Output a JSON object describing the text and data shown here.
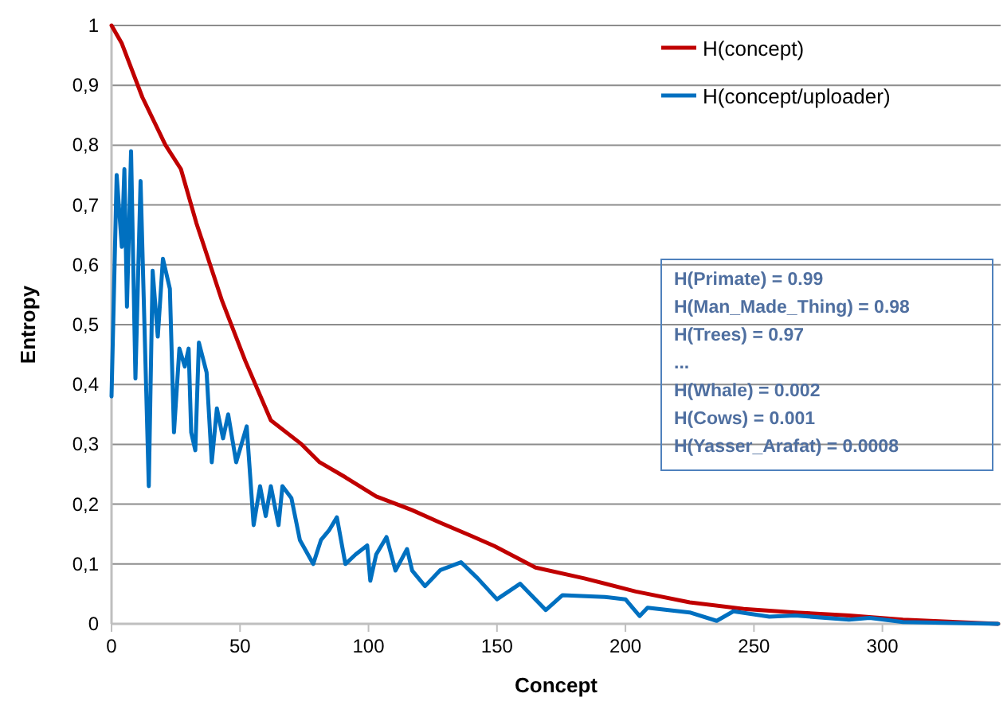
{
  "chart_data": {
    "type": "line",
    "xlabel": "Concept",
    "ylabel": "Entropy",
    "xlim": [
      0,
      346
    ],
    "xticks": [
      0,
      50,
      100,
      150,
      200,
      250,
      300
    ],
    "ylim": [
      0,
      1
    ],
    "yticks": [
      0,
      {
        "value": 0.1,
        "label": "0,1"
      },
      {
        "value": 0.2,
        "label": "0,2"
      },
      {
        "value": 0.3,
        "label": "0,3"
      },
      {
        "value": 0.4,
        "label": "0,4"
      },
      {
        "value": 0.5,
        "label": "0,5"
      },
      {
        "value": 0.6,
        "label": "0,6"
      },
      {
        "value": 0.7,
        "label": "0,7"
      },
      {
        "value": 0.8,
        "label": "0,8"
      },
      {
        "value": 0.9,
        "label": "0,9"
      },
      1
    ],
    "grid": "y",
    "legend": "top right",
    "marker": "none",
    "line_style": "solid",
    "annotations": [
      "H(Primate) = 0.99",
      "H(Man_Made_Thing) = 0.98",
      "H(Trees) = 0.97",
      "...",
      "H(Whale) = 0.002",
      "H(Cows) = 0.001",
      "H(Yasser_Arafat) = 0.0008"
    ],
    "series": [
      {
        "name": "H(concept)",
        "color": "#c00000",
        "x": [
          0,
          4,
          12,
          21,
          27,
          33,
          43,
          52,
          62,
          74,
          81,
          91,
          103,
          117,
          128,
          140,
          149,
          165,
          184,
          204,
          225,
          246,
          266,
          287,
          308,
          345
        ],
        "values": [
          1.0,
          0.97,
          0.88,
          0.8,
          0.76,
          0.67,
          0.54,
          0.44,
          0.34,
          0.3,
          0.27,
          0.245,
          0.213,
          0.19,
          0.169,
          0.147,
          0.13,
          0.094,
          0.076,
          0.054,
          0.036,
          0.025,
          0.019,
          0.014,
          0.007,
          0.0
        ]
      },
      {
        "name": "H(concept/uploader)",
        "color": "#0070c0",
        "x": [
          0,
          2,
          4,
          5,
          6,
          7.6,
          9.3,
          11.3,
          14.5,
          16,
          18,
          20,
          22.7,
          24.3,
          26.4,
          28.5,
          30,
          31,
          32.6,
          34,
          37,
          39,
          41,
          43.4,
          45.4,
          48.5,
          52.6,
          55.3,
          57.8,
          60,
          62,
          65,
          66.5,
          70,
          73.3,
          78.5,
          81.5,
          84.6,
          87.7,
          91,
          95,
          99.5,
          100.7,
          103,
          107,
          110.5,
          115,
          117,
          122,
          128,
          136,
          142.5,
          150,
          159,
          169,
          175.5,
          192,
          200,
          205.5,
          208.6,
          225,
          235.5,
          242,
          256,
          266,
          287,
          295,
          308,
          345
        ],
        "values": [
          0.38,
          0.75,
          0.63,
          0.76,
          0.53,
          0.79,
          0.41,
          0.74,
          0.23,
          0.59,
          0.48,
          0.61,
          0.56,
          0.32,
          0.46,
          0.43,
          0.46,
          0.32,
          0.29,
          0.47,
          0.42,
          0.27,
          0.36,
          0.31,
          0.35,
          0.27,
          0.33,
          0.165,
          0.23,
          0.18,
          0.23,
          0.165,
          0.23,
          0.21,
          0.14,
          0.1,
          0.14,
          0.156,
          0.178,
          0.1,
          0.116,
          0.131,
          0.072,
          0.116,
          0.145,
          0.089,
          0.125,
          0.089,
          0.063,
          0.09,
          0.103,
          0.076,
          0.041,
          0.067,
          0.023,
          0.048,
          0.045,
          0.041,
          0.013,
          0.027,
          0.019,
          0.005,
          0.021,
          0.012,
          0.014,
          0.007,
          0.01,
          0.003,
          0.0
        ]
      }
    ]
  }
}
